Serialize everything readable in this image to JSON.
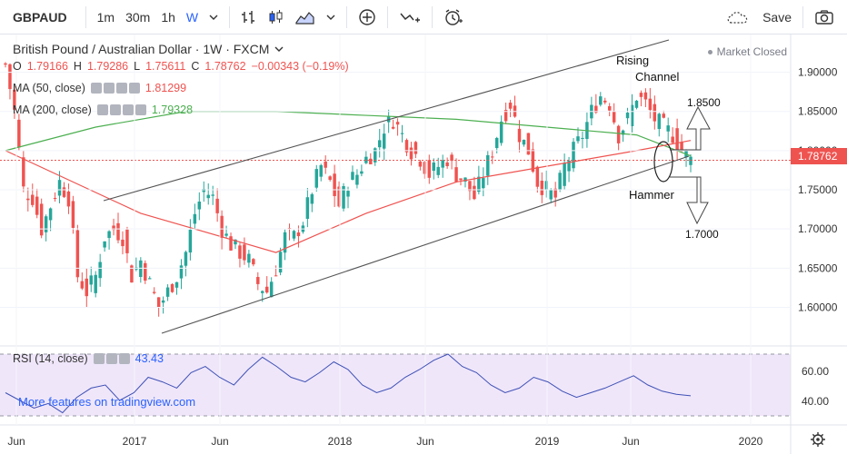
{
  "toolbar": {
    "symbol": "GBPAUD",
    "intervals": [
      "1m",
      "30m",
      "1h",
      "W"
    ],
    "active_interval": "W",
    "save_label": "Save",
    "icons": [
      "chevron-down-icon",
      "bar-chart-icon",
      "candles-icon",
      "area-chart-icon",
      "add-indicator-icon",
      "compare-icon",
      "alert-icon",
      "cloud-icon",
      "camera-icon"
    ]
  },
  "legend": {
    "title": "British Pound / Australian Dollar · 1W · FXCM",
    "ohlc": {
      "o_label": "O",
      "o": "1.79166",
      "h_label": "H",
      "h": "1.79286",
      "l_label": "L",
      "l": "1.75611",
      "c_label": "C",
      "c": "1.78762",
      "chg": "−0.00343 (−0.19%)"
    },
    "ma50": {
      "label": "MA (50, close)",
      "value": "1.81299",
      "color": "#ef5350"
    },
    "ma200": {
      "label": "MA (200, close)",
      "value": "1.79328",
      "color": "#4caf50"
    },
    "market_status": "Market Closed"
  },
  "rsi": {
    "label": "RSI (14, close)",
    "value": "43.43",
    "axis": [
      "60.00",
      "40.00"
    ]
  },
  "promo": "More features on tradingview.com",
  "annotations": {
    "rising": "Rising",
    "channel": "Channel",
    "hammer": "Hammer",
    "target_up": "1.8500",
    "target_down": "1.7000"
  },
  "chart_data": {
    "type": "candlestick",
    "symbol": "GBPAUD",
    "price_axis": [
      "1.90000",
      "1.85000",
      "1.80000",
      "1.75000",
      "1.70000",
      "1.65000",
      "1.60000"
    ],
    "ylim": [
      1.56,
      1.925
    ],
    "last_price": "1.78762",
    "time_axis": [
      "Jun",
      "2017",
      "Jun",
      "2018",
      "Jun",
      "2019",
      "Jun",
      "2020"
    ],
    "close_path": [
      [
        0,
        1.91
      ],
      [
        2,
        1.85
      ],
      [
        4,
        1.75
      ],
      [
        6,
        1.74
      ],
      [
        8,
        1.7
      ],
      [
        10,
        1.73
      ],
      [
        12,
        1.76
      ],
      [
        14,
        1.74
      ],
      [
        16,
        1.64
      ],
      [
        18,
        1.62
      ],
      [
        20,
        1.64
      ],
      [
        22,
        1.69
      ],
      [
        24,
        1.7
      ],
      [
        26,
        1.69
      ],
      [
        28,
        1.64
      ],
      [
        30,
        1.66
      ],
      [
        32,
        1.63
      ],
      [
        34,
        1.6
      ],
      [
        36,
        1.62
      ],
      [
        38,
        1.64
      ],
      [
        40,
        1.67
      ],
      [
        42,
        1.72
      ],
      [
        44,
        1.75
      ],
      [
        46,
        1.74
      ],
      [
        48,
        1.7
      ],
      [
        50,
        1.68
      ],
      [
        52,
        1.67
      ],
      [
        54,
        1.66
      ],
      [
        56,
        1.63
      ],
      [
        58,
        1.62
      ],
      [
        60,
        1.65
      ],
      [
        62,
        1.69
      ],
      [
        64,
        1.69
      ],
      [
        66,
        1.71
      ],
      [
        68,
        1.75
      ],
      [
        70,
        1.78
      ],
      [
        72,
        1.76
      ],
      [
        74,
        1.73
      ],
      [
        76,
        1.76
      ],
      [
        78,
        1.77
      ],
      [
        80,
        1.79
      ],
      [
        82,
        1.8
      ],
      [
        84,
        1.83
      ],
      [
        86,
        1.84
      ],
      [
        88,
        1.82
      ],
      [
        90,
        1.8
      ],
      [
        92,
        1.79
      ],
      [
        94,
        1.77
      ],
      [
        96,
        1.78
      ],
      [
        98,
        1.79
      ],
      [
        100,
        1.77
      ],
      [
        102,
        1.76
      ],
      [
        104,
        1.74
      ],
      [
        106,
        1.77
      ],
      [
        108,
        1.8
      ],
      [
        110,
        1.84
      ],
      [
        112,
        1.86
      ],
      [
        114,
        1.82
      ],
      [
        116,
        1.8
      ],
      [
        118,
        1.76
      ],
      [
        120,
        1.75
      ],
      [
        122,
        1.74
      ],
      [
        124,
        1.78
      ],
      [
        126,
        1.8
      ],
      [
        128,
        1.82
      ],
      [
        130,
        1.85
      ],
      [
        132,
        1.87
      ],
      [
        134,
        1.86
      ],
      [
        136,
        1.82
      ],
      [
        138,
        1.84
      ],
      [
        140,
        1.87
      ],
      [
        142,
        1.86
      ],
      [
        144,
        1.84
      ],
      [
        146,
        1.83
      ],
      [
        148,
        1.82
      ],
      [
        150,
        1.8
      ],
      [
        152,
        1.788
      ]
    ],
    "ma50_path": [
      [
        0,
        1.8
      ],
      [
        30,
        1.72
      ],
      [
        60,
        1.67
      ],
      [
        80,
        1.72
      ],
      [
        100,
        1.76
      ],
      [
        120,
        1.78
      ],
      [
        140,
        1.8
      ],
      [
        152,
        1.81299
      ]
    ],
    "ma200_path": [
      [
        0,
        1.8
      ],
      [
        20,
        1.83
      ],
      [
        40,
        1.85
      ],
      [
        60,
        1.85
      ],
      [
        80,
        1.845
      ],
      [
        100,
        1.84
      ],
      [
        120,
        1.83
      ],
      [
        140,
        1.82
      ],
      [
        152,
        1.79328
      ]
    ],
    "rsi_values": [
      45,
      40,
      35,
      38,
      32,
      42,
      48,
      50,
      40,
      45,
      55,
      52,
      48,
      58,
      62,
      55,
      50,
      60,
      68,
      62,
      55,
      52,
      58,
      65,
      60,
      50,
      45,
      48,
      55,
      60,
      66,
      70,
      62,
      58,
      50,
      45,
      48,
      55,
      52,
      46,
      42,
      45,
      48,
      52,
      56,
      50,
      46,
      44,
      43
    ]
  }
}
